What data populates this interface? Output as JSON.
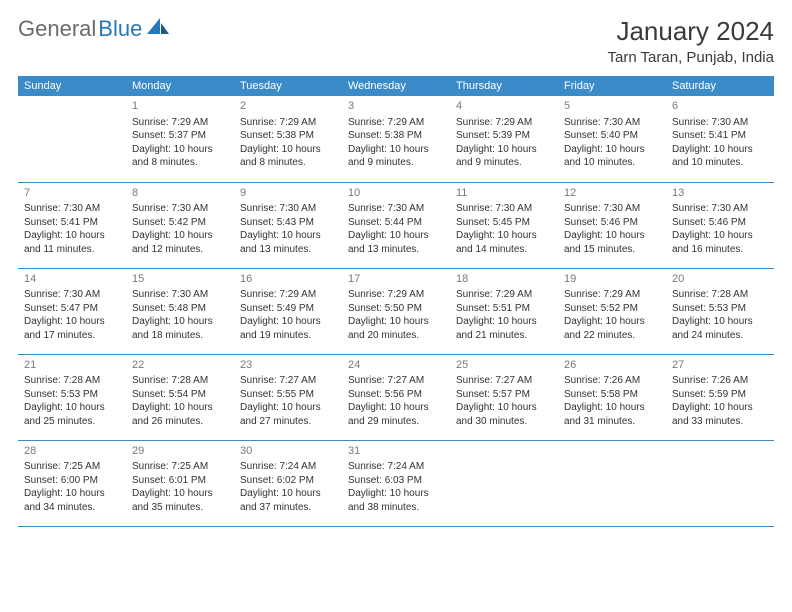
{
  "logo": {
    "gray": "General",
    "blue": "Blue"
  },
  "title": "January 2024",
  "location": "Tarn Taran, Punjab, India",
  "colors": {
    "header_bg": "#3b8bc9",
    "header_text": "#ffffff",
    "cell_border": "#3b8bc9",
    "daynum": "#7a7a7a",
    "body_text": "#333333",
    "logo_gray": "#6b6b6b",
    "logo_blue": "#2879b8"
  },
  "weekdays": [
    "Sunday",
    "Monday",
    "Tuesday",
    "Wednesday",
    "Thursday",
    "Friday",
    "Saturday"
  ],
  "first_weekday_index": 1,
  "days": [
    {
      "n": 1,
      "sr": "7:29 AM",
      "ss": "5:37 PM",
      "dl": "10 hours and 8 minutes."
    },
    {
      "n": 2,
      "sr": "7:29 AM",
      "ss": "5:38 PM",
      "dl": "10 hours and 8 minutes."
    },
    {
      "n": 3,
      "sr": "7:29 AM",
      "ss": "5:38 PM",
      "dl": "10 hours and 9 minutes."
    },
    {
      "n": 4,
      "sr": "7:29 AM",
      "ss": "5:39 PM",
      "dl": "10 hours and 9 minutes."
    },
    {
      "n": 5,
      "sr": "7:30 AM",
      "ss": "5:40 PM",
      "dl": "10 hours and 10 minutes."
    },
    {
      "n": 6,
      "sr": "7:30 AM",
      "ss": "5:41 PM",
      "dl": "10 hours and 10 minutes."
    },
    {
      "n": 7,
      "sr": "7:30 AM",
      "ss": "5:41 PM",
      "dl": "10 hours and 11 minutes."
    },
    {
      "n": 8,
      "sr": "7:30 AM",
      "ss": "5:42 PM",
      "dl": "10 hours and 12 minutes."
    },
    {
      "n": 9,
      "sr": "7:30 AM",
      "ss": "5:43 PM",
      "dl": "10 hours and 13 minutes."
    },
    {
      "n": 10,
      "sr": "7:30 AM",
      "ss": "5:44 PM",
      "dl": "10 hours and 13 minutes."
    },
    {
      "n": 11,
      "sr": "7:30 AM",
      "ss": "5:45 PM",
      "dl": "10 hours and 14 minutes."
    },
    {
      "n": 12,
      "sr": "7:30 AM",
      "ss": "5:46 PM",
      "dl": "10 hours and 15 minutes."
    },
    {
      "n": 13,
      "sr": "7:30 AM",
      "ss": "5:46 PM",
      "dl": "10 hours and 16 minutes."
    },
    {
      "n": 14,
      "sr": "7:30 AM",
      "ss": "5:47 PM",
      "dl": "10 hours and 17 minutes."
    },
    {
      "n": 15,
      "sr": "7:30 AM",
      "ss": "5:48 PM",
      "dl": "10 hours and 18 minutes."
    },
    {
      "n": 16,
      "sr": "7:29 AM",
      "ss": "5:49 PM",
      "dl": "10 hours and 19 minutes."
    },
    {
      "n": 17,
      "sr": "7:29 AM",
      "ss": "5:50 PM",
      "dl": "10 hours and 20 minutes."
    },
    {
      "n": 18,
      "sr": "7:29 AM",
      "ss": "5:51 PM",
      "dl": "10 hours and 21 minutes."
    },
    {
      "n": 19,
      "sr": "7:29 AM",
      "ss": "5:52 PM",
      "dl": "10 hours and 22 minutes."
    },
    {
      "n": 20,
      "sr": "7:28 AM",
      "ss": "5:53 PM",
      "dl": "10 hours and 24 minutes."
    },
    {
      "n": 21,
      "sr": "7:28 AM",
      "ss": "5:53 PM",
      "dl": "10 hours and 25 minutes."
    },
    {
      "n": 22,
      "sr": "7:28 AM",
      "ss": "5:54 PM",
      "dl": "10 hours and 26 minutes."
    },
    {
      "n": 23,
      "sr": "7:27 AM",
      "ss": "5:55 PM",
      "dl": "10 hours and 27 minutes."
    },
    {
      "n": 24,
      "sr": "7:27 AM",
      "ss": "5:56 PM",
      "dl": "10 hours and 29 minutes."
    },
    {
      "n": 25,
      "sr": "7:27 AM",
      "ss": "5:57 PM",
      "dl": "10 hours and 30 minutes."
    },
    {
      "n": 26,
      "sr": "7:26 AM",
      "ss": "5:58 PM",
      "dl": "10 hours and 31 minutes."
    },
    {
      "n": 27,
      "sr": "7:26 AM",
      "ss": "5:59 PM",
      "dl": "10 hours and 33 minutes."
    },
    {
      "n": 28,
      "sr": "7:25 AM",
      "ss": "6:00 PM",
      "dl": "10 hours and 34 minutes."
    },
    {
      "n": 29,
      "sr": "7:25 AM",
      "ss": "6:01 PM",
      "dl": "10 hours and 35 minutes."
    },
    {
      "n": 30,
      "sr": "7:24 AM",
      "ss": "6:02 PM",
      "dl": "10 hours and 37 minutes."
    },
    {
      "n": 31,
      "sr": "7:24 AM",
      "ss": "6:03 PM",
      "dl": "10 hours and 38 minutes."
    }
  ],
  "labels": {
    "sunrise": "Sunrise:",
    "sunset": "Sunset:",
    "daylight": "Daylight:"
  }
}
